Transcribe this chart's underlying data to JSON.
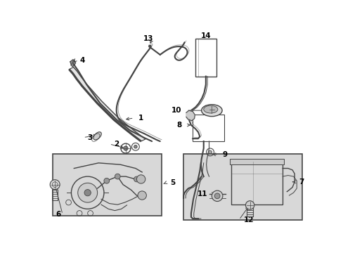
{
  "bg_color": "#ffffff",
  "label_color": "#000000",
  "line_color": "#444444",
  "box_fill": "#d8d8d8",
  "box_edge": "#444444",
  "figsize": [
    4.89,
    3.6
  ],
  "dpi": 100
}
